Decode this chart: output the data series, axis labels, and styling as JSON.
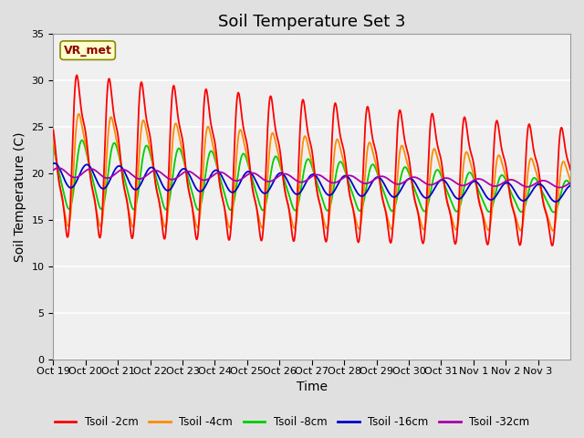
{
  "title": "Soil Temperature Set 3",
  "xlabel": "Time",
  "ylabel": "Soil Temperature (C)",
  "ylim": [
    0,
    35
  ],
  "yticks": [
    0,
    5,
    10,
    15,
    20,
    25,
    30,
    35
  ],
  "xtick_labels": [
    "Oct 19",
    "Oct 20",
    "Oct 21",
    "Oct 22",
    "Oct 23",
    "Oct 24",
    "Oct 25",
    "Oct 26",
    "Oct 27",
    "Oct 28",
    "Oct 29",
    "Oct 30",
    "Oct 31",
    "Nov 1",
    "Nov 2",
    "Nov 3"
  ],
  "line_colors": {
    "2cm": "#ff0000",
    "4cm": "#ff8c00",
    "8cm": "#00cc00",
    "16cm": "#0000cc",
    "32cm": "#aa00aa"
  },
  "legend_labels": [
    "Tsoil -2cm",
    "Tsoil -4cm",
    "Tsoil -8cm",
    "Tsoil -16cm",
    "Tsoil -32cm"
  ],
  "annotation_text": "VR_met",
  "annotation_color": "#8b0000",
  "annotation_bg": "#ffffcc",
  "background_color": "#e0e0e0",
  "plot_bg": "#f0f0f0",
  "grid_color": "#ffffff",
  "title_fontsize": 13,
  "label_fontsize": 10,
  "tick_fontsize": 8
}
